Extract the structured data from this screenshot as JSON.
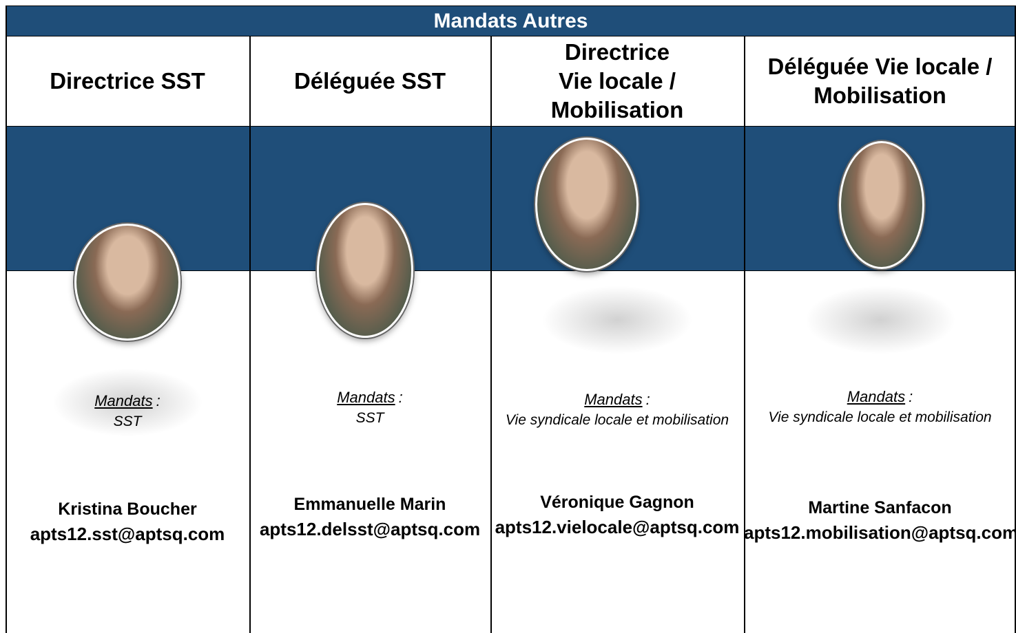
{
  "header": {
    "title": "Mandats Autres"
  },
  "columns": [
    {
      "role": [
        "Directrice SST"
      ],
      "mandats_label": "Mandats",
      "separator": ":",
      "mandats": "SST",
      "name": "Kristina Boucher",
      "email": "apts12.sst@aptsq.com"
    },
    {
      "role": [
        "Déléguée SST"
      ],
      "mandats_label": "Mandats",
      "separator": ":",
      "mandats": "SST",
      "name": "Emmanuelle Marin",
      "email": "apts12.delsst@aptsq.com"
    },
    {
      "role": [
        "Directrice",
        "Vie locale /",
        "Mobilisation"
      ],
      "mandats_label": "Mandats",
      "separator": ":",
      "mandats": "Vie syndicale locale et mobilisation",
      "name": "Véronique Gagnon",
      "email": "apts12.vielocale@aptsq.com"
    },
    {
      "role": [
        "Déléguée Vie locale /",
        "Mobilisation"
      ],
      "mandats_label": "Mandats",
      "separator": ":",
      "mandats": "Vie syndicale locale et mobilisation",
      "name": "Martine Sanfacon",
      "email": "apts12.mobilisation@aptsq.com"
    }
  ]
}
